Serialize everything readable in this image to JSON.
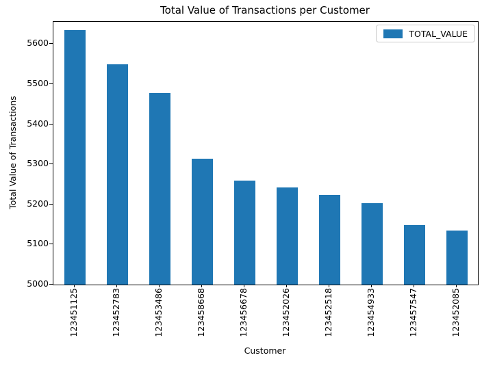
{
  "chart_data": {
    "type": "bar",
    "title": "Total Value of Transactions per Customer",
    "xlabel": "Customer",
    "ylabel": "Total Value of Transactions",
    "categories": [
      "123451125",
      "123452783",
      "123453486",
      "123458668",
      "123456678",
      "123452026",
      "123452518",
      "123454933",
      "123457547",
      "123452085"
    ],
    "series": [
      {
        "name": "TOTAL_VALUE",
        "color": "#1f77b4",
        "values": [
          5635,
          5549,
          5477,
          5314,
          5260,
          5242,
          5223,
          5203,
          5149,
          5134
        ]
      }
    ],
    "ylim": [
      5000,
      5655
    ],
    "yticks": [
      5000,
      5100,
      5200,
      5300,
      5400,
      5500,
      5600
    ],
    "grid": false,
    "legend_position": "upper right",
    "bar_width_fraction": 0.5,
    "axis_color": "#000000",
    "background_color": "#ffffff"
  }
}
